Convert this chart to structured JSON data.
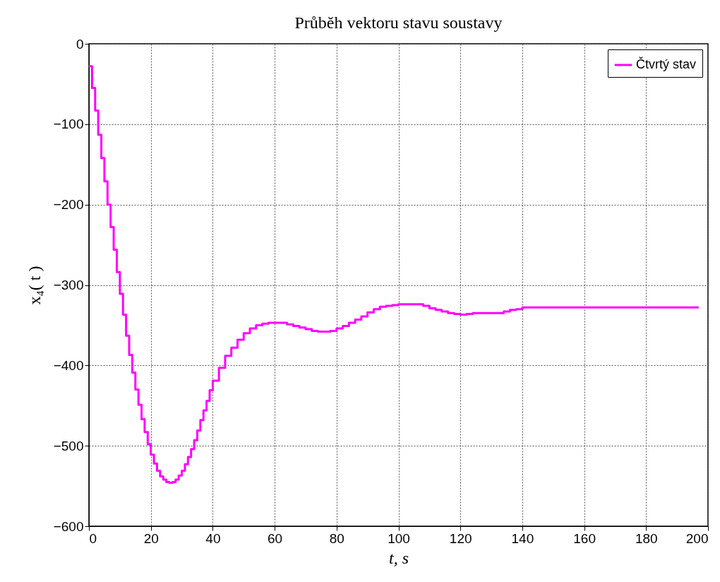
{
  "chart_data": {
    "type": "step",
    "title": "Průběh vektoru stavu soustavy",
    "xlabel": "t, s",
    "ylabel": "x₄( t )",
    "xlim": [
      0,
      200
    ],
    "xticks": [
      0,
      20,
      40,
      60,
      80,
      100,
      120,
      140,
      160,
      180,
      200
    ],
    "ylim": [
      -600,
      0
    ],
    "yticks": [
      -600,
      -500,
      -400,
      -300,
      -200,
      -100,
      0
    ],
    "grid": true,
    "legend": "top right",
    "marker": "none",
    "line_style": "solid",
    "series": [
      {
        "name": "Čtvrtý stav",
        "color": "#ff00ff",
        "x": [
          0,
          1,
          2,
          3,
          4,
          5,
          6,
          7,
          8,
          9,
          10,
          11,
          12,
          13,
          14,
          15,
          16,
          17,
          18,
          19,
          20,
          21,
          22,
          23,
          24,
          25,
          26,
          27,
          28,
          29,
          30,
          31,
          32,
          33,
          34,
          35,
          36,
          37,
          38,
          39,
          40,
          42,
          44,
          46,
          48,
          50,
          52,
          54,
          56,
          58,
          62,
          64,
          66,
          68,
          70,
          72,
          74,
          76,
          78,
          80,
          82,
          84,
          86,
          88,
          90,
          92,
          94,
          96,
          98,
          100,
          106,
          108,
          110,
          112,
          114,
          116,
          118,
          120,
          122,
          124,
          132,
          134,
          136,
          138,
          140,
          197
        ],
        "values": [
          -28,
          -55,
          -83,
          -113,
          -142,
          -171,
          -200,
          -228,
          -256,
          -284,
          -311,
          -337,
          -363,
          -387,
          -409,
          -430,
          -449,
          -467,
          -483,
          -498,
          -511,
          -522,
          -531,
          -538,
          -542,
          -545,
          -546,
          -545,
          -542,
          -537,
          -531,
          -523,
          -514,
          -504,
          -493,
          -481,
          -468,
          -456,
          -444,
          -431,
          -419,
          -403,
          -388,
          -378,
          -368,
          -360,
          -354,
          -350,
          -348,
          -347,
          -347,
          -349,
          -351,
          -353,
          -355,
          -357,
          -358,
          -358,
          -357,
          -354,
          -351,
          -347,
          -343,
          -339,
          -334,
          -330,
          -327,
          -326,
          -325,
          -324,
          -324,
          -326,
          -329,
          -331,
          -333,
          -335,
          -336,
          -337,
          -336,
          -335,
          -335,
          -333,
          -331,
          -330,
          -328,
          -328
        ]
      }
    ]
  }
}
